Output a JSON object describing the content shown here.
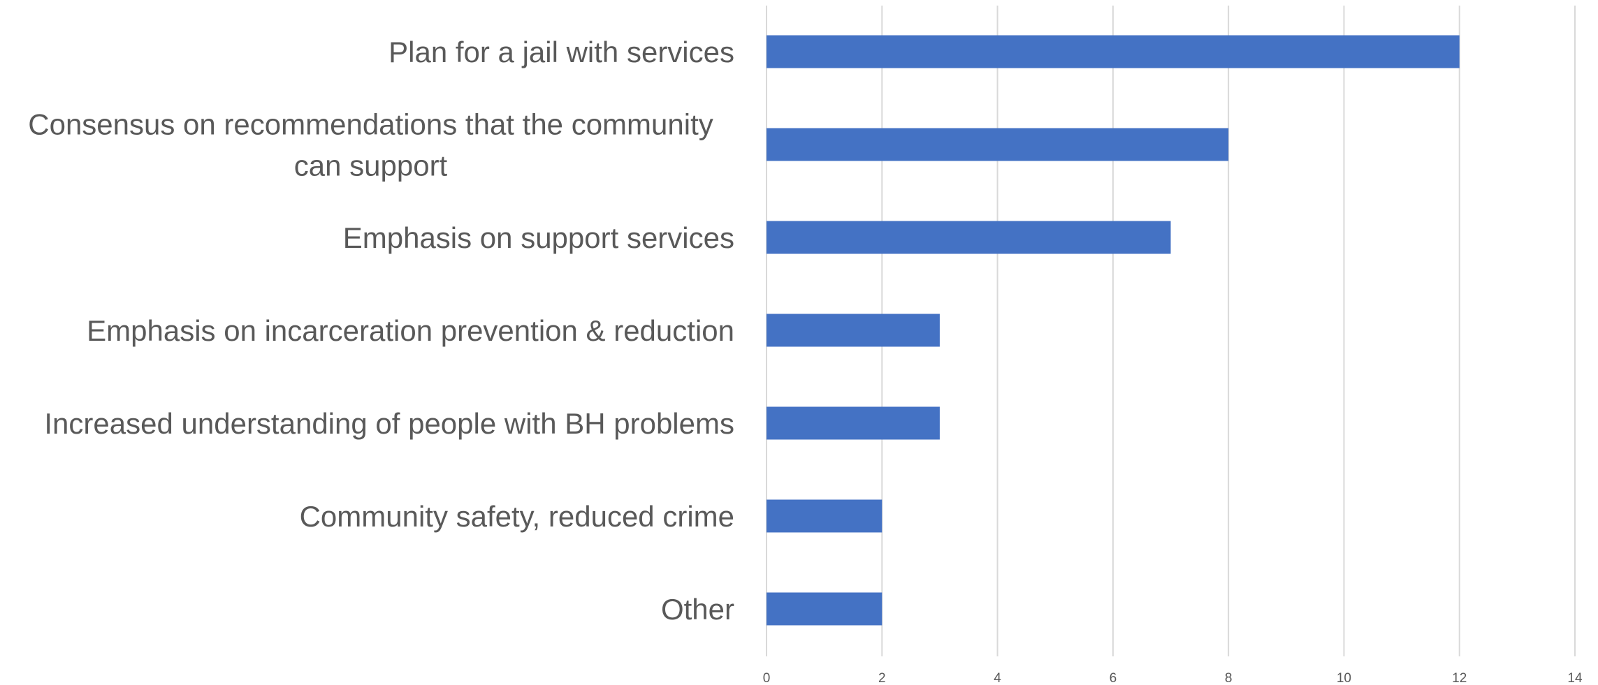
{
  "chart_data": {
    "type": "bar",
    "orientation": "horizontal",
    "title": "",
    "xlabel": "",
    "ylabel": "",
    "categories": [
      [
        "Plan for a jail with services"
      ],
      [
        "Consensus on recommendations that the community",
        "can support"
      ],
      [
        "Emphasis on support services"
      ],
      [
        "Emphasis on incarceration prevention & reduction"
      ],
      [
        "Increased understanding of people with BH problems"
      ],
      [
        "Community safety, reduced crime"
      ],
      [
        "Other"
      ]
    ],
    "values": [
      12,
      8,
      7,
      3,
      3,
      2,
      2
    ],
    "xlim": [
      0,
      14
    ],
    "xticks": [
      "0",
      "2",
      "4",
      "6",
      "8",
      "10",
      "12",
      "14"
    ],
    "grid": "vertical",
    "legend": "none",
    "bar_color": "#4472c4"
  }
}
